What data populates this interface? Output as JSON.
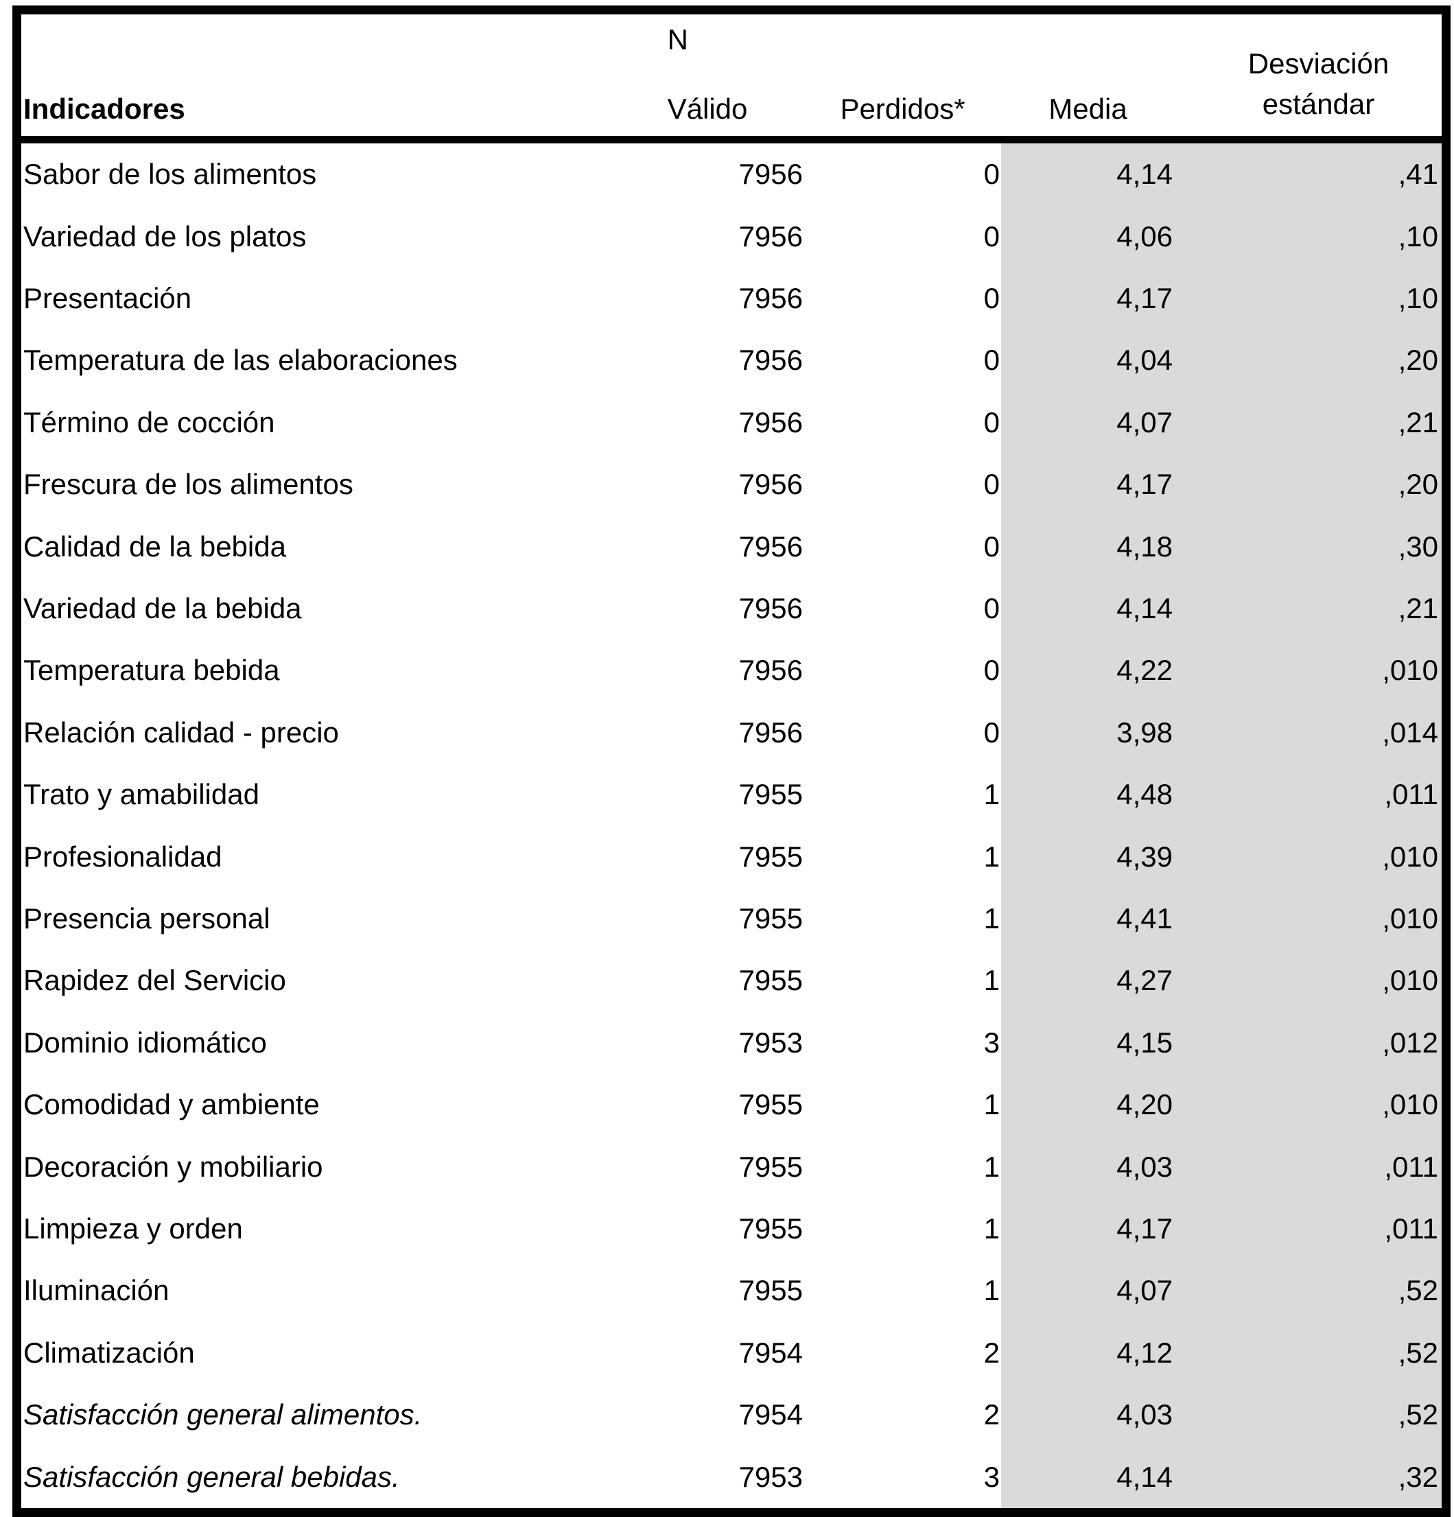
{
  "colors": {
    "highlight_bg": "#dadada",
    "border": "#000000",
    "text": "#000000",
    "background": "#ffffff"
  },
  "chart_data": {
    "type": "table",
    "title": "",
    "header": {
      "indicator": "Indicadores",
      "n": "N",
      "valid": "Válido",
      "missing": "Perdidos*",
      "mean": "Media",
      "std": [
        "Desviación",
        "estándar"
      ]
    },
    "layout": {
      "highlight_columns": [
        "Media",
        "Desviación estándar"
      ],
      "grid": "outer-border-only",
      "numeric_alignment": "right"
    },
    "rows": [
      {
        "label": "Sabor de los alimentos",
        "valid": "7956",
        "missing": "0",
        "mean": "4,14",
        "std": ",41",
        "italic": false
      },
      {
        "label": "Variedad de los platos",
        "valid": "7956",
        "missing": "0",
        "mean": "4,06",
        "std": ",10",
        "italic": false
      },
      {
        "label": "Presentación",
        "valid": "7956",
        "missing": "0",
        "mean": "4,17",
        "std": ",10",
        "italic": false
      },
      {
        "label": "Temperatura de las elaboraciones",
        "valid": "7956",
        "missing": "0",
        "mean": "4,04",
        "std": ",20",
        "italic": false
      },
      {
        "label": "Término de cocción",
        "valid": "7956",
        "missing": "0",
        "mean": "4,07",
        "std": ",21",
        "italic": false
      },
      {
        "label": "Frescura de los alimentos",
        "valid": "7956",
        "missing": "0",
        "mean": "4,17",
        "std": ",20",
        "italic": false
      },
      {
        "label": "Calidad de la bebida",
        "valid": "7956",
        "missing": "0",
        "mean": "4,18",
        "std": ",30",
        "italic": false
      },
      {
        "label": "Variedad de la bebida",
        "valid": "7956",
        "missing": "0",
        "mean": "4,14",
        "std": ",21",
        "italic": false
      },
      {
        "label": "Temperatura bebida",
        "valid": "7956",
        "missing": "0",
        "mean": "4,22",
        "std": ",010",
        "italic": false
      },
      {
        "label": "Relación calidad - precio",
        "valid": "7956",
        "missing": "0",
        "mean": "3,98",
        "std": ",014",
        "italic": false
      },
      {
        "label": "Trato y amabilidad",
        "valid": "7955",
        "missing": "1",
        "mean": "4,48",
        "std": ",011",
        "italic": false
      },
      {
        "label": "Profesionalidad",
        "valid": "7955",
        "missing": "1",
        "mean": "4,39",
        "std": ",010",
        "italic": false
      },
      {
        "label": "Presencia personal",
        "valid": "7955",
        "missing": "1",
        "mean": "4,41",
        "std": ",010",
        "italic": false
      },
      {
        "label": "Rapidez del Servicio",
        "valid": "7955",
        "missing": "1",
        "mean": "4,27",
        "std": ",010",
        "italic": false
      },
      {
        "label": "Dominio idiomático",
        "valid": "7953",
        "missing": "3",
        "mean": "4,15",
        "std": ",012",
        "italic": false
      },
      {
        "label": "Comodidad y ambiente",
        "valid": "7955",
        "missing": "1",
        "mean": "4,20",
        "std": ",010",
        "italic": false
      },
      {
        "label": "Decoración y mobiliario",
        "valid": "7955",
        "missing": "1",
        "mean": "4,03",
        "std": ",011",
        "italic": false
      },
      {
        "label": "Limpieza y orden",
        "valid": "7955",
        "missing": "1",
        "mean": "4,17",
        "std": ",011",
        "italic": false
      },
      {
        "label": "Iluminación",
        "valid": "7955",
        "missing": "1",
        "mean": "4,07",
        "std": ",52",
        "italic": false
      },
      {
        "label": "Climatización",
        "valid": "7954",
        "missing": "2",
        "mean": "4,12",
        "std": ",52",
        "italic": false
      },
      {
        "label": "Satisfacción general alimentos.",
        "valid": "7954",
        "missing": "2",
        "mean": "4,03",
        "std": ",52",
        "italic": true
      },
      {
        "label": "Satisfacción general bebidas.",
        "valid": "7953",
        "missing": "3",
        "mean": "4,14",
        "std": ",32",
        "italic": true
      }
    ]
  }
}
